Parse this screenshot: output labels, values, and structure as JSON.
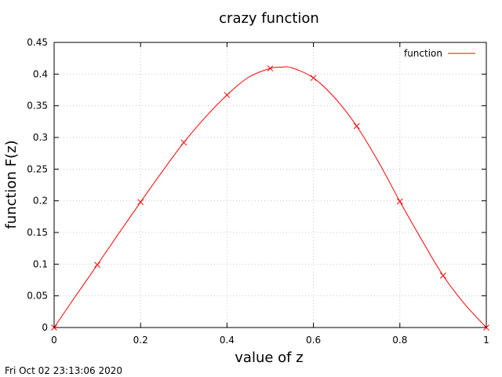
{
  "colors": {
    "series": "#ff0000",
    "grid": "#c8c8c8",
    "axis": "#000000"
  },
  "timestamp": "Fri Oct 02 23:13:06 2020",
  "chart_data": {
    "type": "line",
    "title": "crazy function",
    "xlabel": "value of z",
    "ylabel": "function F(z)",
    "xlim": [
      0,
      1
    ],
    "ylim": [
      0,
      0.45
    ],
    "xticks": [
      0,
      0.2,
      0.4,
      0.6,
      0.8,
      1
    ],
    "xtick_labels": [
      "0",
      "0.2",
      "0.4",
      "0.6",
      "0.8",
      "1"
    ],
    "yticks": [
      0,
      0.05,
      0.1,
      0.15,
      0.2,
      0.25,
      0.3,
      0.35,
      0.4,
      0.45
    ],
    "ytick_labels": [
      "0",
      "0.05",
      "0.1",
      "0.15",
      "0.2",
      "0.25",
      "0.3",
      "0.35",
      "0.4",
      "0.45"
    ],
    "grid": true,
    "legend_position": "top-right",
    "series": [
      {
        "name": "function",
        "color": "#ff0000",
        "marker": "x",
        "curve_x": [
          0,
          0.05,
          0.1,
          0.15,
          0.2,
          0.25,
          0.3,
          0.35,
          0.4,
          0.45,
          0.5,
          0.525,
          0.55,
          0.6,
          0.65,
          0.7,
          0.75,
          0.8,
          0.85,
          0.9,
          0.95,
          1.0
        ],
        "curve_y": [
          0,
          0.05,
          0.099,
          0.149,
          0.198,
          0.246,
          0.292,
          0.332,
          0.367,
          0.395,
          0.409,
          0.411,
          0.41,
          0.394,
          0.362,
          0.318,
          0.262,
          0.199,
          0.139,
          0.082,
          0.037,
          0
        ],
        "x": [
          0,
          0.1,
          0.2,
          0.3,
          0.4,
          0.5,
          0.6,
          0.7,
          0.8,
          0.9,
          1.0
        ],
        "y": [
          0,
          0.099,
          0.198,
          0.292,
          0.367,
          0.409,
          0.394,
          0.318,
          0.199,
          0.082,
          0
        ]
      }
    ]
  }
}
